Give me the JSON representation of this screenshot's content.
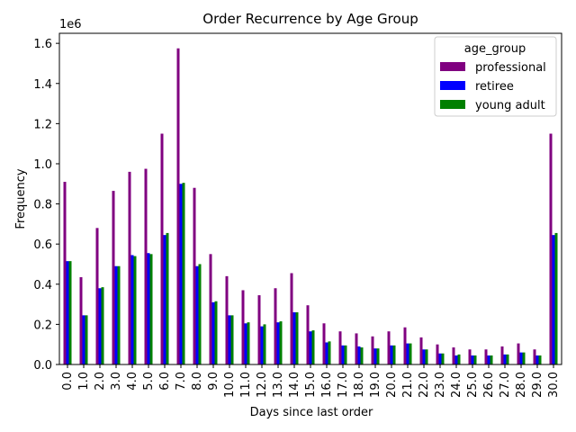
{
  "chart_data": {
    "type": "bar",
    "title": "Order Recurrence by Age Group",
    "xlabel": "Days since last order",
    "ylabel": "Frequency",
    "y_offset_label": "1e6",
    "ylim": [
      0,
      1.65
    ],
    "yticks": [
      "0.0",
      "0.2",
      "0.4",
      "0.6",
      "0.8",
      "1.0",
      "1.2",
      "1.4",
      "1.6"
    ],
    "categories": [
      "0.0",
      "1.0",
      "2.0",
      "3.0",
      "4.0",
      "5.0",
      "6.0",
      "7.0",
      "8.0",
      "9.0",
      "10.0",
      "11.0",
      "12.0",
      "13.0",
      "14.0",
      "15.0",
      "16.0",
      "17.0",
      "18.0",
      "19.0",
      "20.0",
      "21.0",
      "22.0",
      "23.0",
      "24.0",
      "25.0",
      "26.0",
      "27.0",
      "28.0",
      "29.0",
      "30.0"
    ],
    "legend": {
      "title": "age_group",
      "position": "top-right"
    },
    "grid": false,
    "series": [
      {
        "name": "professional",
        "color": "#800080",
        "values": [
          0.91,
          0.435,
          0.68,
          0.865,
          0.96,
          0.975,
          1.15,
          1.575,
          0.88,
          0.55,
          0.44,
          0.37,
          0.345,
          0.38,
          0.455,
          0.295,
          0.205,
          0.165,
          0.155,
          0.14,
          0.165,
          0.185,
          0.135,
          0.1,
          0.085,
          0.075,
          0.075,
          0.09,
          0.105,
          0.075,
          1.15
        ]
      },
      {
        "name": "retiree",
        "color": "#0000ff",
        "values": [
          0.515,
          0.245,
          0.38,
          0.49,
          0.545,
          0.555,
          0.645,
          0.9,
          0.49,
          0.31,
          0.245,
          0.205,
          0.19,
          0.21,
          0.26,
          0.165,
          0.11,
          0.095,
          0.09,
          0.08,
          0.095,
          0.105,
          0.075,
          0.055,
          0.045,
          0.045,
          0.045,
          0.05,
          0.06,
          0.045,
          0.645
        ]
      },
      {
        "name": "young adult",
        "color": "#008000",
        "values": [
          0.515,
          0.245,
          0.385,
          0.49,
          0.54,
          0.55,
          0.655,
          0.905,
          0.5,
          0.315,
          0.245,
          0.21,
          0.2,
          0.215,
          0.26,
          0.17,
          0.115,
          0.095,
          0.085,
          0.08,
          0.095,
          0.105,
          0.075,
          0.055,
          0.05,
          0.045,
          0.045,
          0.05,
          0.06,
          0.045,
          0.655
        ]
      }
    ]
  }
}
